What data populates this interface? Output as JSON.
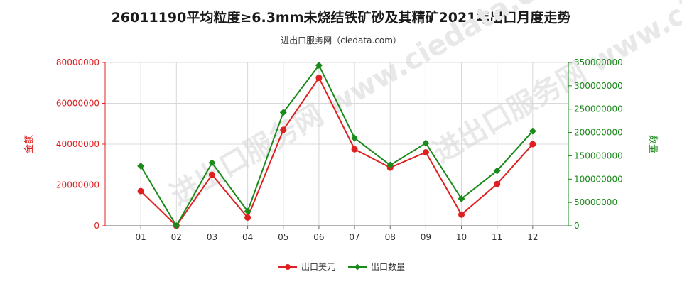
{
  "page": {
    "title": "26011190平均粒度≥6.3mm未烧结铁矿砂及其精矿2021年出口月度走势",
    "subtitle": "进出口服务网（ciedata.com）",
    "watermark": "进出口服务网 www.ciedata.com"
  },
  "chart_data": {
    "type": "line",
    "categories": [
      "01",
      "02",
      "03",
      "04",
      "05",
      "06",
      "07",
      "08",
      "09",
      "10",
      "11",
      "12"
    ],
    "series": [
      {
        "name": "出口美元",
        "axis": "left",
        "color": "#e02020",
        "values": [
          17000000,
          0,
          25000000,
          4000000,
          47000000,
          72500000,
          37500000,
          28500000,
          36000000,
          5500000,
          20500000,
          40000000
        ]
      },
      {
        "name": "出口数量",
        "axis": "right",
        "color": "#1a8a1a",
        "values": [
          128000000,
          0,
          135000000,
          31000000,
          243000000,
          344000000,
          188000000,
          130000000,
          177000000,
          58000000,
          118000000,
          203000000
        ]
      }
    ],
    "ylabel_left": "金额",
    "ylabel_right": "数量",
    "ylim_left": [
      0,
      80000000
    ],
    "ylim_right": [
      0,
      350000000
    ],
    "yticks_left": [
      "0",
      "20000000",
      "40000000",
      "60000000",
      "80000000"
    ],
    "yticks_right": [
      "0",
      "50000000",
      "100000000",
      "150000000",
      "200000000",
      "250000000",
      "300000000",
      "350000000"
    ],
    "yticks_left_values": [
      0,
      20000000,
      40000000,
      60000000,
      80000000
    ],
    "yticks_right_values": [
      0,
      50000000,
      100000000,
      150000000,
      200000000,
      250000000,
      300000000,
      350000000
    ],
    "grid": true,
    "legend_position": "bottom-center"
  }
}
